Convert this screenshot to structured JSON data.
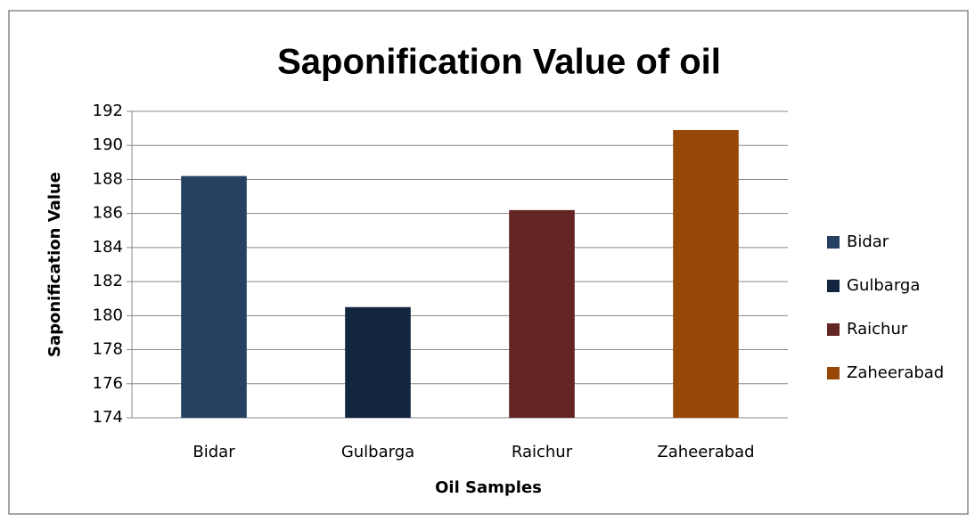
{
  "chart_data": {
    "type": "bar",
    "title": "Saponification Value of oil",
    "x_label": "Oil Samples",
    "y_label": "Saponification  Value",
    "categories": [
      "Bidar",
      "Gulbarga",
      "Raichur",
      "Zaheerabad"
    ],
    "values": [
      188.2,
      180.5,
      186.2,
      190.9
    ],
    "colors": [
      "#254061",
      "#132640",
      "#632523",
      "#974806"
    ],
    "ylim": [
      174,
      192
    ],
    "yticks": [
      174,
      176,
      178,
      180,
      182,
      184,
      186,
      188,
      190,
      192
    ],
    "grid": true,
    "legend": "right"
  }
}
